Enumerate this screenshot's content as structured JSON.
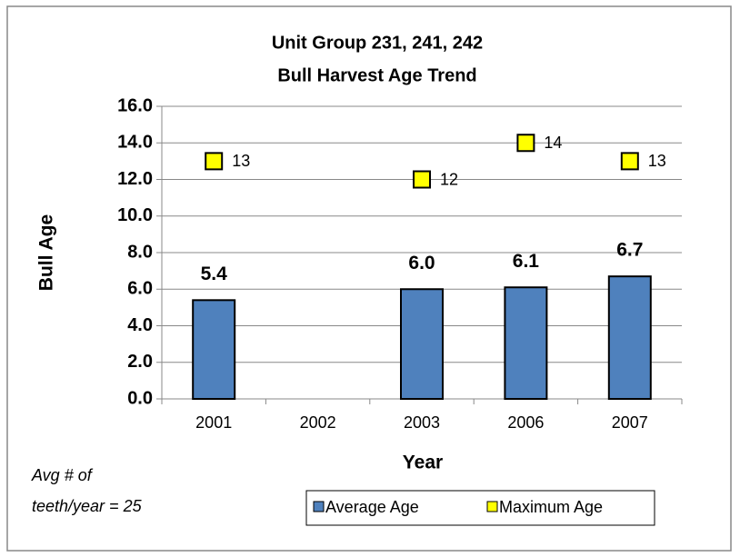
{
  "chart_data": {
    "type": "bar",
    "title": [
      "Unit Group 231, 241, 242",
      "Bull Harvest Age Trend"
    ],
    "x_label": "Year",
    "y_label": "Bull Age",
    "annotation": [
      "Avg # of",
      "teeth/year =  25"
    ],
    "categories": [
      "2001",
      "2002",
      "2003",
      "2006",
      "2007"
    ],
    "series": [
      {
        "name": "Average Age",
        "type": "bar",
        "color": "#4f81bd",
        "values": [
          5.4,
          null,
          6.0,
          6.1,
          6.7
        ],
        "value_labels": [
          "5.4",
          null,
          "6.0",
          "6.1",
          "6.7"
        ]
      },
      {
        "name": "Maximum Age",
        "type": "scatter",
        "color": "#ffff00",
        "values": [
          13,
          null,
          12,
          14,
          13
        ]
      }
    ],
    "ylim": [
      0,
      16
    ],
    "yticks": [
      {
        "value": 0,
        "label": "0.0"
      },
      {
        "value": 2,
        "label": "2.0"
      },
      {
        "value": 4,
        "label": "4.0"
      },
      {
        "value": 6,
        "label": "6.0"
      },
      {
        "value": 8,
        "label": "8.0"
      },
      {
        "value": 10,
        "label": "10.0"
      },
      {
        "value": 12,
        "label": "12.0"
      },
      {
        "value": 14,
        "label": "14.0"
      },
      {
        "value": 16,
        "label": "16.0"
      }
    ],
    "grid": true,
    "legend": "bottom-right"
  }
}
